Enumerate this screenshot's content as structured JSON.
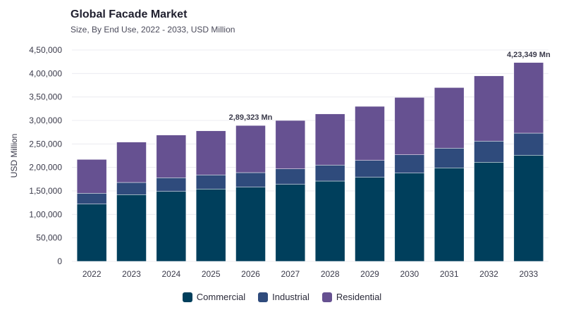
{
  "header": {
    "title": "Global Facade Market",
    "subtitle": "Size, By End Use, 2022 - 2033, USD Million"
  },
  "chart_data": {
    "type": "bar",
    "stacked": true,
    "title": "Global Facade Market",
    "subtitle": "Size, By End Use, 2022 - 2033, USD Million",
    "xlabel": "",
    "ylabel": "USD Million",
    "ylim": [
      0,
      450000
    ],
    "yticks": [
      0,
      50000,
      100000,
      150000,
      200000,
      250000,
      300000,
      350000,
      400000,
      450000
    ],
    "ytick_labels": [
      "0",
      "50,000",
      "1,00,000",
      "1,50,000",
      "2,00,000",
      "2,50,000",
      "3,00,000",
      "3,50,000",
      "4,00,000",
      "4,50,000"
    ],
    "categories": [
      "2022",
      "2023",
      "2024",
      "2025",
      "2026",
      "2027",
      "2028",
      "2029",
      "2030",
      "2031",
      "2032",
      "2033"
    ],
    "series": [
      {
        "name": "Commercial",
        "color": "#003f5c",
        "values": [
          122000,
          142000,
          149000,
          154000,
          158000,
          164000,
          171000,
          179000,
          188000,
          199000,
          211000,
          226000
        ]
      },
      {
        "name": "Industrial",
        "color": "#2f4b7c",
        "values": [
          23000,
          26000,
          29000,
          30000,
          31000,
          33000,
          34000,
          36000,
          39000,
          42000,
          45000,
          47000
        ]
      },
      {
        "name": "Residential",
        "color": "#665191",
        "values": [
          72000,
          86000,
          91000,
          94000,
          100323,
          103000,
          109000,
          115000,
          122000,
          129000,
          139000,
          150349
        ]
      }
    ],
    "annotations": [
      {
        "category": "2026",
        "text": "2,89,323 Mn"
      },
      {
        "category": "2033",
        "text": "4,23,349 Mn"
      }
    ],
    "grid": true,
    "legend_position": "bottom-center"
  }
}
